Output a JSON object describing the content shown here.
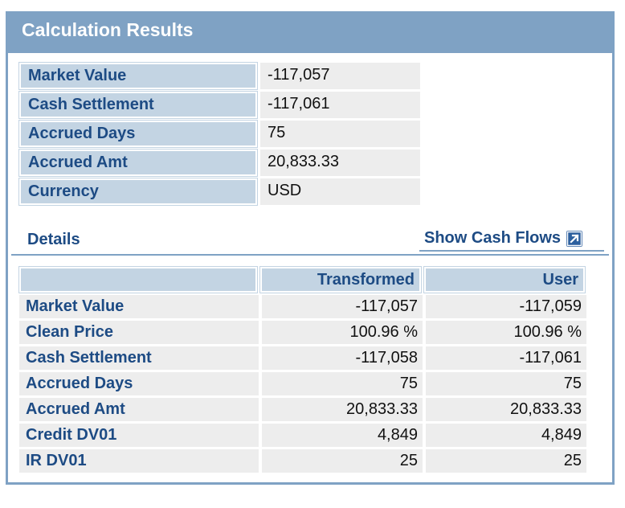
{
  "header": {
    "title": "Calculation Results"
  },
  "summary": {
    "rows": [
      {
        "label": "Market Value",
        "value": "-117,057"
      },
      {
        "label": "Cash Settlement",
        "value": "-117,061"
      },
      {
        "label": "Accrued Days",
        "value": "75"
      },
      {
        "label": "Accrued Amt",
        "value": "20,833.33"
      },
      {
        "label": "Currency",
        "value": "USD"
      }
    ]
  },
  "details": {
    "title": "Details",
    "show_cash_flows_label": "Show Cash Flows",
    "columns": [
      "Transformed",
      "User"
    ],
    "rows": [
      {
        "label": "Market Value",
        "transformed": "-117,057",
        "user": "-117,059"
      },
      {
        "label": "Clean Price",
        "transformed": "100.96 %",
        "user": "100.96 %"
      },
      {
        "label": "Cash Settlement",
        "transformed": "-117,058",
        "user": "-117,061"
      },
      {
        "label": "Accrued Days",
        "transformed": "75",
        "user": "75"
      },
      {
        "label": "Accrued Amt",
        "transformed": "20,833.33",
        "user": "20,833.33"
      },
      {
        "label": "Credit DV01",
        "transformed": "4,849",
        "user": "4,849"
      },
      {
        "label": "IR DV01",
        "transformed": "25",
        "user": "25"
      }
    ]
  },
  "icons": {
    "show_cash_flows": "external-link-icon"
  },
  "colors": {
    "header_bg": "#7fa2c4",
    "label_bg": "#c3d4e3",
    "value_bg": "#ededed",
    "label_text": "#1d4b84"
  }
}
